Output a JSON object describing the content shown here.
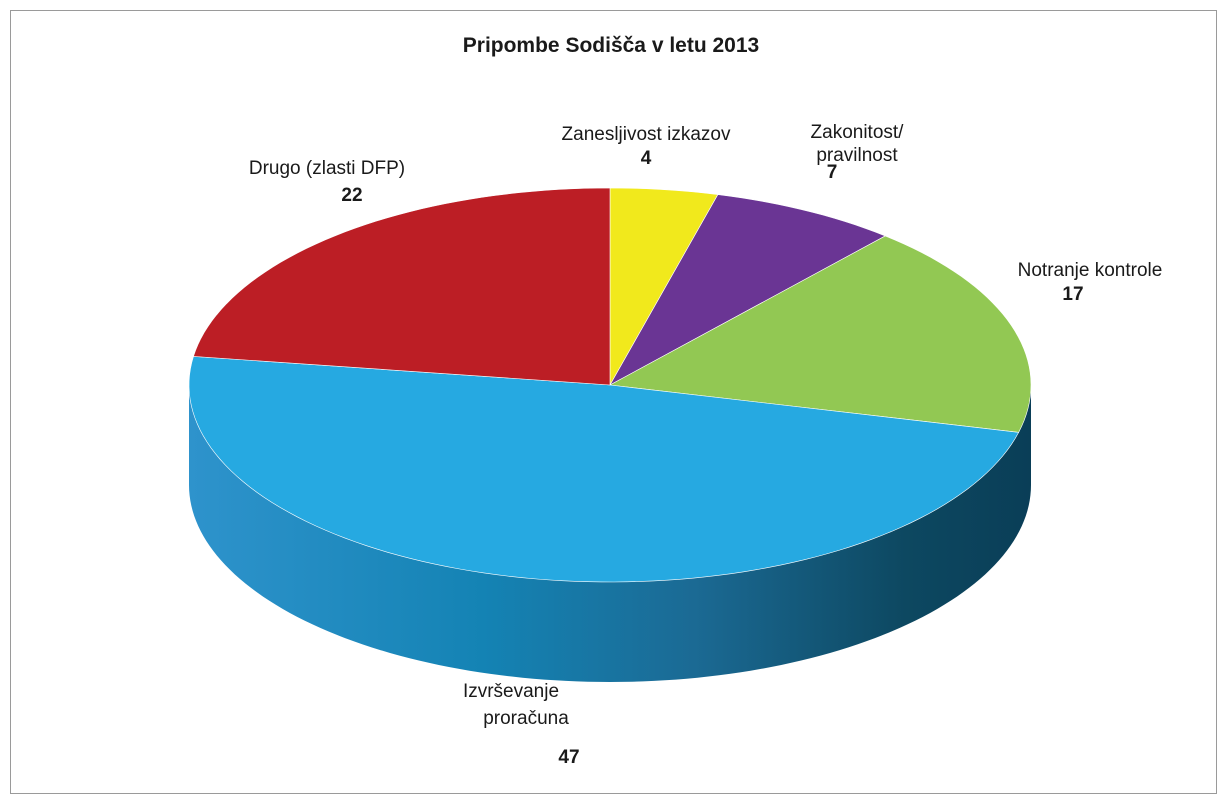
{
  "chart_data": {
    "type": "pie",
    "title": "Pripombe Sodišča v letu 2013",
    "slices": [
      {
        "label": "Zanesljivost izkazov",
        "label_lines": [
          "Zanesljivost izkazov"
        ],
        "value": 4,
        "color": "#F1E91C"
      },
      {
        "label": "Zakonitost/ pravilnost",
        "label_lines": [
          "Zakonitost/",
          "pravilnost"
        ],
        "value": 7,
        "color": "#6A3594"
      },
      {
        "label": "Notranje kontrole",
        "label_lines": [
          "Notranje kontrole"
        ],
        "value": 17,
        "color": "#92C853"
      },
      {
        "label": "Izvrševanje proračuna",
        "label_lines": [
          "Izvrševanje",
          "proračuna"
        ],
        "value": 47,
        "color": "#26A9E1"
      },
      {
        "label": "Drugo (zlasti DFP)",
        "label_lines": [
          "Drugo (zlasti DFP)"
        ],
        "value": 22,
        "color": "#BC1E25"
      }
    ],
    "style": "3d",
    "legend": "none"
  }
}
